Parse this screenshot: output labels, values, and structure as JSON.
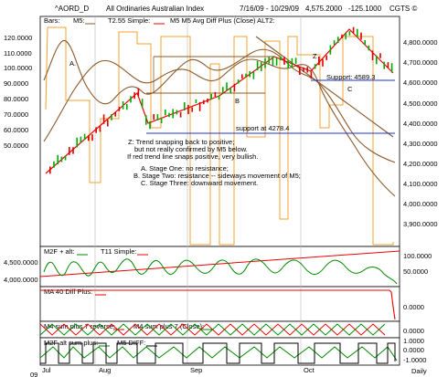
{
  "header": {
    "symbol": "^AORD_D",
    "name": "All Ordinaries Australian Index",
    "date_range": "7/16/09 - 10/29/09",
    "last": "4,575.2000",
    "change": "-125.1000",
    "source": "CGTS ©"
  },
  "main_legend": {
    "bars": "Bars:",
    "m5": "M5:",
    "t2": "T2.55 Simple:",
    "avg": "M5 M5 Avg Diff Plus (Close) ALT2:"
  },
  "price_axis": [
    "120.0000",
    "110.0000",
    "100.0000",
    "90.0000",
    "80.0000",
    "70.0000",
    "60.0000",
    "50.0000"
  ],
  "price_axis_right": [
    "4,800.0000",
    "4,700.0000",
    "4,600.0000",
    "4,500.0000",
    "4,400.0000",
    "4,300.0000",
    "4,200.0000",
    "4,100.0000",
    "4,000.0000",
    "3,900.0000"
  ],
  "annotations": {
    "a": "A.",
    "b": "B",
    "c": "C",
    "z": "Z",
    "support1": "Support: 4589.3",
    "support2": "support at  4278.4",
    "note": [
      "Z: Trend snapping back to positive;",
      "but not really confirmed by M5 below.",
      "If red trend line snaps positive, very bullish.",
      "A.  Stage One: no resistance;",
      "B.  Stage Two: resistance -- sideways movement of M5;",
      "C.  Stage Three: downward movement."
    ]
  },
  "panel2": {
    "legend_a": "M2F + alt:",
    "legend_b": "T11 Simple:",
    "left_axis": [
      "4,500.0000",
      "4,000.0000"
    ],
    "right_axis": [
      "100.0000",
      "50.0000"
    ]
  },
  "panel3": {
    "legend": "MA 40 Diff Plus:",
    "right_axis": [
      "0.0000"
    ]
  },
  "panel4": {
    "legend_a": "M4 sum plus 7 reverse:",
    "legend_b": "M4 sum plus 7 (Close):",
    "right_axis": [
      "0.0000"
    ]
  },
  "panel5": {
    "legend_a": "M2F alt sum plus:",
    "legend_b": "M5 DIFF:",
    "right_axis": [
      "1.0000",
      "0.0000",
      "-1.0000"
    ]
  },
  "x_axis": {
    "months": [
      "Jul",
      "Aug",
      "Sep",
      "Oct"
    ],
    "year": "09",
    "period": "Daily"
  },
  "colors": {
    "bull": "#00aa00",
    "bear": "#dd0000",
    "m5": "#8b5a2b",
    "orange": "#f0a030",
    "blue": "#2233cc",
    "green": "#008800",
    "red": "#ee0000",
    "black": "#000000"
  }
}
